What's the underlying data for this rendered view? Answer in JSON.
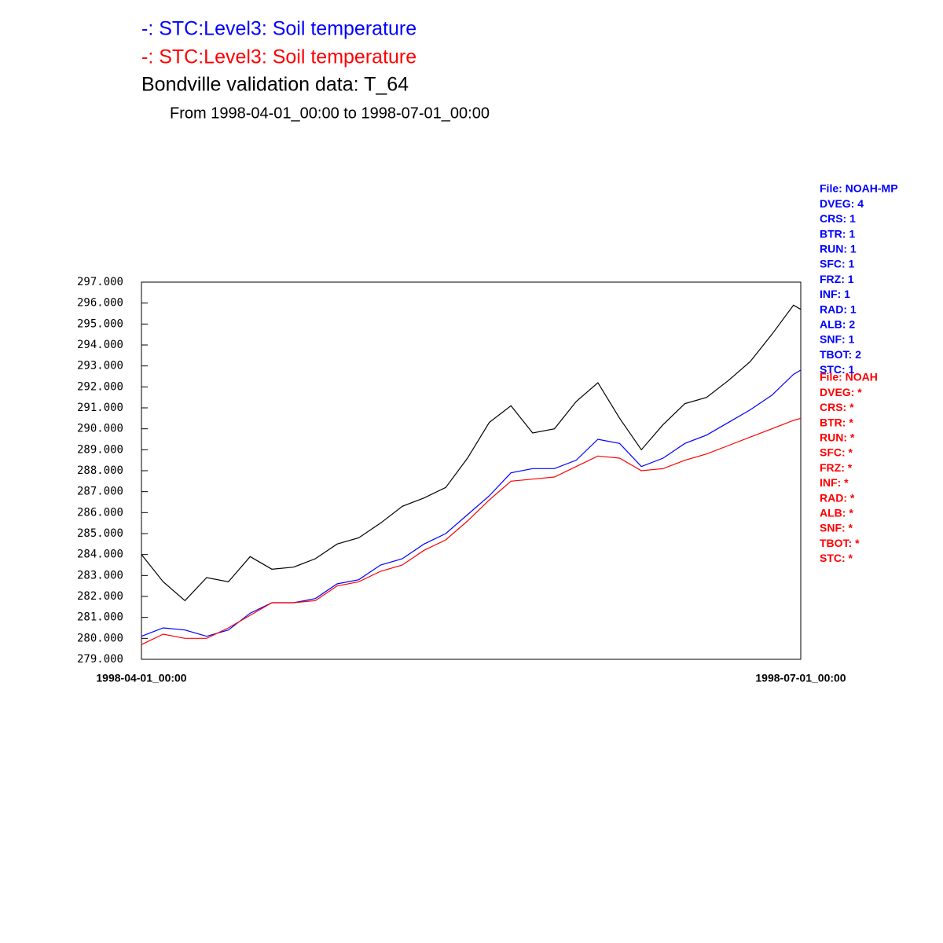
{
  "chart_data": {
    "type": "line",
    "title": "Bondville validation data:  T_64",
    "subtitle": "From 1998-04-01_00:00 to 1998-07-01_00:00",
    "x": [
      "1998-04-01_00:00",
      "1998-04-04_00:00",
      "1998-04-07_00:00",
      "1998-04-10_00:00",
      "1998-04-13_00:00",
      "1998-04-16_00:00",
      "1998-04-19_00:00",
      "1998-04-22_00:00",
      "1998-04-25_00:00",
      "1998-04-28_00:00",
      "1998-05-01_00:00",
      "1998-05-04_00:00",
      "1998-05-07_00:00",
      "1998-05-10_00:00",
      "1998-05-13_00:00",
      "1998-05-16_00:00",
      "1998-05-19_00:00",
      "1998-05-22_00:00",
      "1998-05-25_00:00",
      "1998-05-28_00:00",
      "1998-05-31_00:00",
      "1998-06-03_00:00",
      "1998-06-06_00:00",
      "1998-06-09_00:00",
      "1998-06-12_00:00",
      "1998-06-15_00:00",
      "1998-06-18_00:00",
      "1998-06-21_00:00",
      "1998-06-24_00:00",
      "1998-06-27_00:00",
      "1998-06-30_00:00",
      "1998-07-01_00:00"
    ],
    "series": [
      {
        "name": "-:  STC:Level3: Soil temperature",
        "color": "#0000ff",
        "values": [
          280.1,
          280.5,
          280.4,
          280.1,
          280.4,
          281.2,
          281.7,
          281.7,
          281.9,
          282.6,
          282.8,
          283.5,
          283.8,
          284.5,
          285.0,
          285.9,
          286.8,
          287.9,
          288.1,
          288.1,
          288.5,
          289.5,
          289.3,
          288.2,
          288.6,
          289.3,
          289.7,
          290.3,
          290.9,
          291.6,
          292.6,
          292.8
        ]
      },
      {
        "name": "-:  STC:Level3: Soil temperature",
        "color": "#ff0000",
        "values": [
          279.7,
          280.2,
          280.0,
          280.0,
          280.5,
          281.1,
          281.7,
          281.7,
          281.8,
          282.5,
          282.7,
          283.2,
          283.5,
          284.2,
          284.7,
          285.6,
          286.6,
          287.5,
          287.6,
          287.7,
          288.2,
          288.7,
          288.6,
          288.0,
          288.1,
          288.5,
          288.8,
          289.2,
          289.6,
          290.0,
          290.4,
          290.5
        ]
      },
      {
        "name": "Bondville validation data:  T_64",
        "color": "#000000",
        "values": [
          284.0,
          282.7,
          281.8,
          282.9,
          282.7,
          283.9,
          283.3,
          283.4,
          283.8,
          284.5,
          284.8,
          285.5,
          286.3,
          286.7,
          287.2,
          288.6,
          290.3,
          291.1,
          289.8,
          290.0,
          291.3,
          292.2,
          290.5,
          289.0,
          290.2,
          291.2,
          291.5,
          292.3,
          293.2,
          294.5,
          295.9,
          295.7
        ]
      }
    ],
    "xlim": [
      "1998-04-01_00:00",
      "1998-07-01_00:00"
    ],
    "xticks": [
      "1998-04-01_00:00",
      "1998-07-01_00:00"
    ],
    "ylim": [
      279,
      297
    ],
    "yticks": [
      {
        "value": 279,
        "label": "279.000"
      },
      {
        "value": 280,
        "label": "280.000"
      },
      {
        "value": 281,
        "label": "281.000"
      },
      {
        "value": 282,
        "label": "282.000"
      },
      {
        "value": 283,
        "label": "283.000"
      },
      {
        "value": 284,
        "label": "284.000"
      },
      {
        "value": 285,
        "label": "285.000"
      },
      {
        "value": 286,
        "label": "286.000"
      },
      {
        "value": 287,
        "label": "287.000"
      },
      {
        "value": 288,
        "label": "288.000"
      },
      {
        "value": 289,
        "label": "289.000"
      },
      {
        "value": 290,
        "label": "290.000"
      },
      {
        "value": 291,
        "label": "291.000"
      },
      {
        "value": 292,
        "label": "292.000"
      },
      {
        "value": 293,
        "label": "293.000"
      },
      {
        "value": 294,
        "label": "294.000"
      },
      {
        "value": 295,
        "label": "295.000"
      },
      {
        "value": 296,
        "label": "296.000"
      },
      {
        "value": 297,
        "label": "297.000"
      }
    ],
    "annotations": [
      {
        "color": "#0000ff",
        "lines": [
          "File: NOAH-MP",
          "DVEG: 4",
          "CRS: 1",
          "BTR: 1",
          "RUN: 1",
          "SFC: 1",
          "FRZ: 1",
          "INF: 1",
          "RAD: 1",
          "ALB: 2",
          "SNF: 1",
          "TBOT: 2",
          "STC: 1"
        ]
      },
      {
        "color": "#ff0000",
        "lines": [
          "File: NOAH",
          "DVEG: *",
          "CRS: *",
          "BTR: *",
          "RUN: *",
          "SFC: *",
          "FRZ: *",
          "INF: *",
          "RAD: *",
          "ALB: *",
          "SNF: *",
          "TBOT: *",
          "STC: *"
        ]
      }
    ]
  }
}
